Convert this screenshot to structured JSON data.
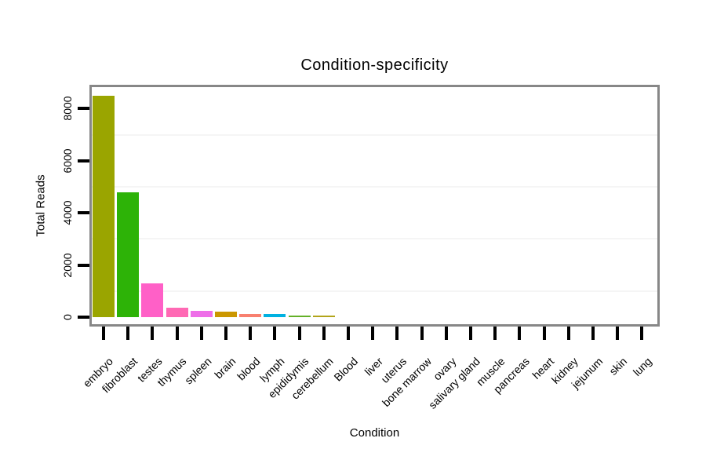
{
  "chart_data": {
    "type": "bar",
    "title": "Condition-specificity",
    "xlabel": "Condition",
    "ylabel": "Total Reads",
    "ylim": [
      0,
      8800
    ],
    "yticks": [
      0,
      2000,
      4000,
      6000,
      8000
    ],
    "ytick_labels": [
      "0",
      "2000",
      "4000",
      "6000",
      "8000"
    ],
    "minor_gridlines": [
      1000,
      3000,
      5000,
      7000
    ],
    "legend_position": "none",
    "grid": "faint horizontal minor gridlines",
    "x_label_rotation_deg": 45,
    "categories": [
      "embryo",
      "fibroblast",
      "testes",
      "thymus",
      "spleen",
      "brain",
      "blood",
      "lymph",
      "epididymis",
      "cerebellum",
      "Blood",
      "liver",
      "uterus",
      "bone marrow",
      "ovary",
      "salivary gland",
      "muscle",
      "pancreas",
      "heart",
      "kidney",
      "jejunum",
      "skin",
      "lung"
    ],
    "values": [
      8500,
      4800,
      1300,
      350,
      230,
      200,
      110,
      130,
      50,
      50,
      0,
      0,
      0,
      0,
      0,
      0,
      0,
      0,
      0,
      0,
      0,
      0,
      0
    ],
    "bar_colors": [
      "#9aa500",
      "#2db307",
      "#ff60c7",
      "#ff69b4",
      "#ee6ee8",
      "#cb9700",
      "#f8806f",
      "#00b1e1",
      "#64b028",
      "#b2a41a",
      null,
      null,
      null,
      null,
      null,
      null,
      null,
      null,
      null,
      null,
      null,
      null,
      null
    ],
    "colors": {
      "plot_border": "#878787",
      "tick": "#000000",
      "gridline": "#f5f5f5",
      "background": "#ffffff",
      "text": "#000000"
    }
  }
}
